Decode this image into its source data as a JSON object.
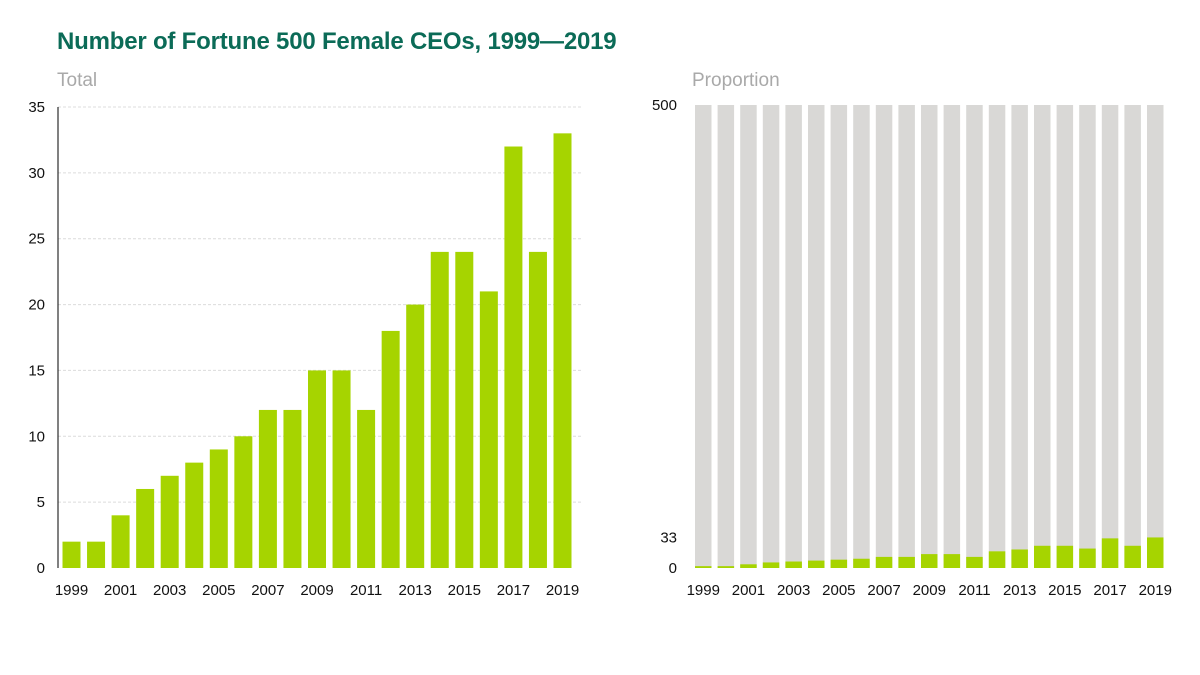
{
  "title": "Number of Fortune 500 Female CEOs, 1999—2019",
  "colors": {
    "accent": "#a6d400",
    "background_bar": "#d9d8d6",
    "title": "#0b6b57",
    "subtitle": "#a9a9a9"
  },
  "chart_data": [
    {
      "type": "bar",
      "title": "Total",
      "categories": [
        "1999",
        "2000",
        "2001",
        "2002",
        "2003",
        "2004",
        "2005",
        "2006",
        "2007",
        "2008",
        "2009",
        "2010",
        "2011",
        "2012",
        "2013",
        "2014",
        "2015",
        "2016",
        "2017",
        "2018",
        "2019"
      ],
      "x_tick_labels": [
        "1999",
        "2001",
        "2003",
        "2005",
        "2007",
        "2009",
        "2011",
        "2013",
        "2015",
        "2017",
        "2019"
      ],
      "values": [
        2,
        2,
        4,
        6,
        7,
        8,
        9,
        10,
        12,
        12,
        15,
        15,
        12,
        18,
        20,
        24,
        24,
        21,
        32,
        24,
        33
      ],
      "ylim": [
        0,
        35
      ],
      "y_ticks": [
        0,
        5,
        10,
        15,
        20,
        25,
        30,
        35
      ],
      "grid": true
    },
    {
      "type": "bar",
      "title": "Proportion",
      "categories": [
        "1999",
        "2000",
        "2001",
        "2002",
        "2003",
        "2004",
        "2005",
        "2006",
        "2007",
        "2008",
        "2009",
        "2010",
        "2011",
        "2012",
        "2013",
        "2014",
        "2015",
        "2016",
        "2017",
        "2018",
        "2019"
      ],
      "x_tick_labels": [
        "1999",
        "2001",
        "2003",
        "2005",
        "2007",
        "2009",
        "2011",
        "2013",
        "2015",
        "2017",
        "2019"
      ],
      "values": [
        2,
        2,
        4,
        6,
        7,
        8,
        9,
        10,
        12,
        12,
        15,
        15,
        12,
        18,
        20,
        24,
        24,
        21,
        32,
        24,
        33
      ],
      "total": 500,
      "ylim": [
        0,
        500
      ],
      "y_ticks": [
        0,
        33,
        500
      ],
      "grid": false
    }
  ]
}
